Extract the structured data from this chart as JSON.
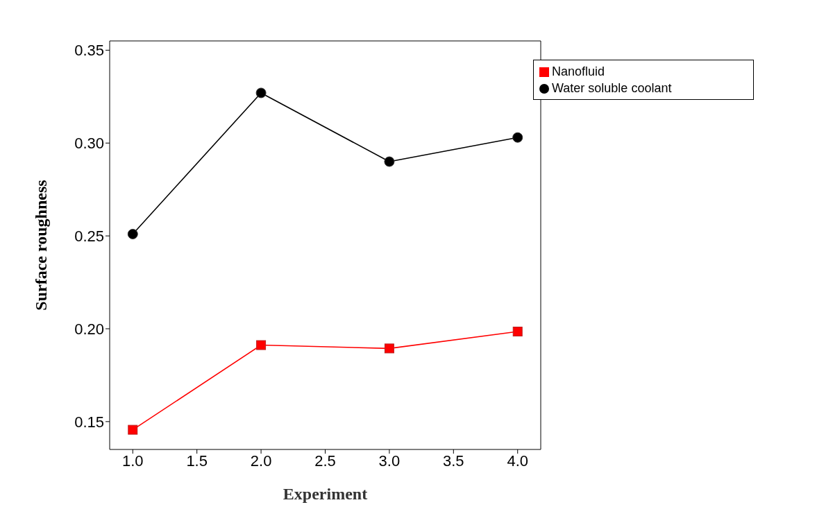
{
  "chart_data": {
    "type": "line",
    "xlabel": "Experiment",
    "ylabel": "Surface roughness",
    "x": [
      1,
      2,
      3,
      4
    ],
    "series": [
      {
        "name": "Water soluble coolant",
        "color": "#000000",
        "marker": "circle",
        "values": [
          0.251,
          0.327,
          0.29,
          0.303
        ]
      },
      {
        "name": "Nanofluid",
        "color": "#ff0000",
        "marker": "square",
        "values": [
          0.1456,
          0.1912,
          0.1894,
          0.1985
        ]
      }
    ],
    "xlim": [
      0.82,
      4.18
    ],
    "xticks": [
      {
        "value": 1,
        "label": "1.0"
      },
      1.5,
      {
        "value": 2,
        "label": "2.0"
      },
      2.5,
      {
        "value": 3,
        "label": "3.0"
      },
      3.5,
      {
        "value": 4,
        "label": "4.0"
      }
    ],
    "ylim": [
      0.135,
      0.355
    ],
    "yticks": [
      0.15,
      {
        "value": 0.2,
        "label": "0.20"
      },
      0.25,
      {
        "value": 0.3,
        "label": "0.30"
      },
      0.35
    ],
    "grid": false,
    "legend": "top right",
    "line_style": "solid"
  }
}
